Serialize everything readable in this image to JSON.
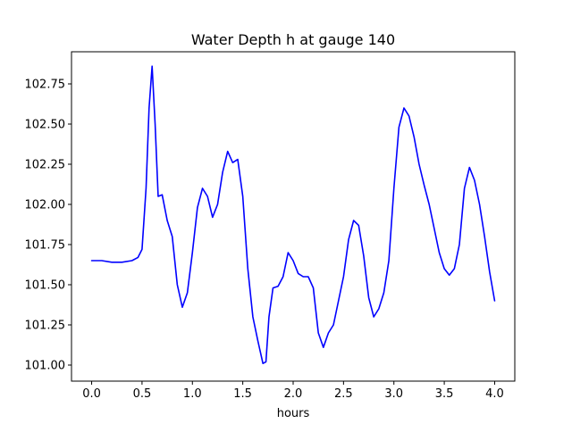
{
  "chart_data": {
    "type": "line",
    "title": "Water Depth h at gauge 140",
    "xlabel": "hours",
    "ylabel": "",
    "xlim": [
      -0.2,
      4.2
    ],
    "ylim": [
      100.9,
      102.95
    ],
    "xticks": [
      0.0,
      0.5,
      1.0,
      1.5,
      2.0,
      2.5,
      3.0,
      3.5,
      4.0
    ],
    "xtick_labels": [
      "0.0",
      "0.5",
      "1.0",
      "1.5",
      "2.0",
      "2.5",
      "3.0",
      "3.5",
      "4.0"
    ],
    "yticks": [
      101.0,
      101.25,
      101.5,
      101.75,
      102.0,
      102.25,
      102.5,
      102.75
    ],
    "ytick_labels": [
      "101.00",
      "101.25",
      "101.50",
      "101.75",
      "102.00",
      "102.25",
      "102.50",
      "102.75"
    ],
    "grid": false,
    "series": [
      {
        "color": "#0000ff",
        "points": [
          [
            0.0,
            101.65
          ],
          [
            0.1,
            101.65
          ],
          [
            0.2,
            101.64
          ],
          [
            0.3,
            101.64
          ],
          [
            0.4,
            101.65
          ],
          [
            0.46,
            101.67
          ],
          [
            0.5,
            101.72
          ],
          [
            0.54,
            102.1
          ],
          [
            0.57,
            102.6
          ],
          [
            0.6,
            102.86
          ],
          [
            0.63,
            102.5
          ],
          [
            0.66,
            102.05
          ],
          [
            0.7,
            102.06
          ],
          [
            0.75,
            101.9
          ],
          [
            0.8,
            101.8
          ],
          [
            0.85,
            101.5
          ],
          [
            0.9,
            101.36
          ],
          [
            0.95,
            101.45
          ],
          [
            1.0,
            101.7
          ],
          [
            1.05,
            101.98
          ],
          [
            1.1,
            102.1
          ],
          [
            1.15,
            102.05
          ],
          [
            1.2,
            101.92
          ],
          [
            1.25,
            102.0
          ],
          [
            1.3,
            102.2
          ],
          [
            1.35,
            102.33
          ],
          [
            1.4,
            102.26
          ],
          [
            1.45,
            102.28
          ],
          [
            1.5,
            102.05
          ],
          [
            1.55,
            101.6
          ],
          [
            1.6,
            101.3
          ],
          [
            1.65,
            101.15
          ],
          [
            1.7,
            101.01
          ],
          [
            1.73,
            101.02
          ],
          [
            1.76,
            101.3
          ],
          [
            1.8,
            101.48
          ],
          [
            1.85,
            101.49
          ],
          [
            1.9,
            101.55
          ],
          [
            1.95,
            101.7
          ],
          [
            2.0,
            101.65
          ],
          [
            2.05,
            101.57
          ],
          [
            2.1,
            101.55
          ],
          [
            2.15,
            101.55
          ],
          [
            2.2,
            101.48
          ],
          [
            2.25,
            101.2
          ],
          [
            2.3,
            101.11
          ],
          [
            2.35,
            101.2
          ],
          [
            2.4,
            101.25
          ],
          [
            2.45,
            101.4
          ],
          [
            2.5,
            101.55
          ],
          [
            2.55,
            101.78
          ],
          [
            2.6,
            101.9
          ],
          [
            2.65,
            101.87
          ],
          [
            2.7,
            101.68
          ],
          [
            2.75,
            101.42
          ],
          [
            2.8,
            101.3
          ],
          [
            2.85,
            101.35
          ],
          [
            2.9,
            101.45
          ],
          [
            2.95,
            101.65
          ],
          [
            3.0,
            102.1
          ],
          [
            3.05,
            102.48
          ],
          [
            3.1,
            102.6
          ],
          [
            3.15,
            102.55
          ],
          [
            3.2,
            102.42
          ],
          [
            3.25,
            102.25
          ],
          [
            3.3,
            102.12
          ],
          [
            3.35,
            102.0
          ],
          [
            3.4,
            101.85
          ],
          [
            3.45,
            101.7
          ],
          [
            3.5,
            101.6
          ],
          [
            3.55,
            101.56
          ],
          [
            3.6,
            101.6
          ],
          [
            3.65,
            101.75
          ],
          [
            3.7,
            102.1
          ],
          [
            3.75,
            102.23
          ],
          [
            3.8,
            102.15
          ],
          [
            3.85,
            102.0
          ],
          [
            3.9,
            101.8
          ],
          [
            3.95,
            101.58
          ],
          [
            4.0,
            101.4
          ]
        ]
      }
    ]
  }
}
